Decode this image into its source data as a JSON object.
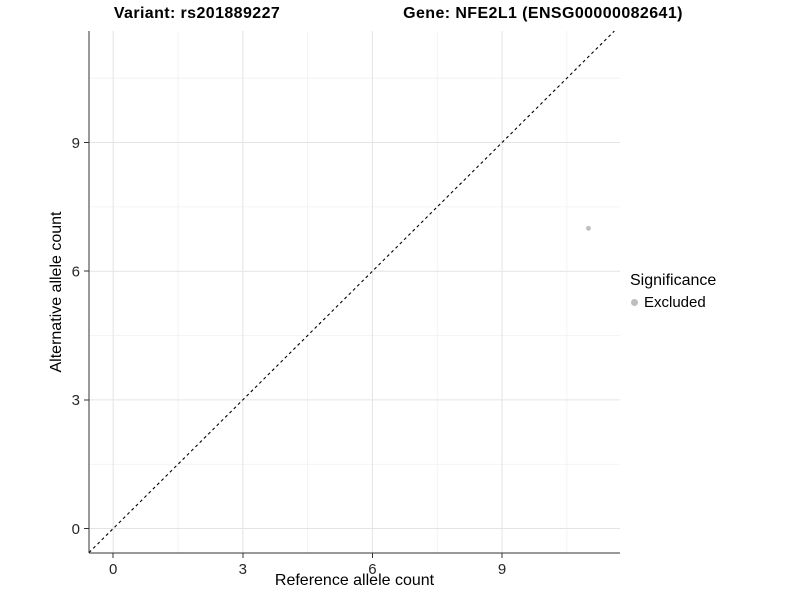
{
  "chart_data": {
    "type": "scatter",
    "title_left": "Variant: rs201889227",
    "title_right": "Gene: NFE2L1 (ENSG00000082641)",
    "xlabel": "Reference allele count",
    "ylabel": "Alternative allele count",
    "xlim": [
      -0.56,
      11.73
    ],
    "ylim": [
      -0.57,
      11.6
    ],
    "x_ticks": [
      0,
      3,
      6,
      9
    ],
    "y_ticks": [
      0,
      3,
      6,
      9
    ],
    "x_minor_ticks": [
      1.5,
      4.5,
      7.5,
      10.5
    ],
    "y_minor_ticks": [
      1.5,
      4.5,
      7.5,
      10.5
    ],
    "grid": "major+minor",
    "points": [
      {
        "x": 11,
        "y": 7,
        "series": "Excluded"
      }
    ],
    "reference_line": {
      "type": "identity",
      "slope": 1,
      "intercept": 0,
      "style": "dashed",
      "color": "#000000"
    },
    "legend": {
      "title": "Significance",
      "position": "right",
      "items": [
        {
          "label": "Excluded",
          "color": "#bebebe"
        }
      ]
    },
    "colors": {
      "background": "#ffffff",
      "grid_major": "#e4e4e4",
      "grid_minor": "#f0f0f0",
      "axis_line": "#333333",
      "tick_text": "#262626"
    }
  }
}
